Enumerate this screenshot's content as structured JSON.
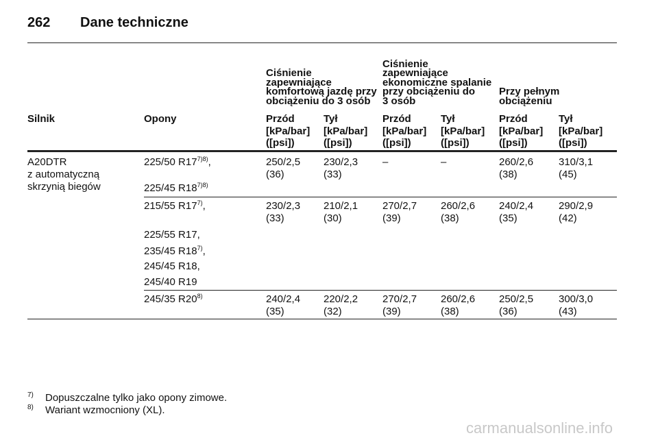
{
  "header": {
    "page_number": "262",
    "title": "Dane techniczne"
  },
  "table": {
    "groups": [
      {
        "lines": [
          "Ciśnienie",
          "zapewniające",
          "komfortową jazdę przy",
          "obciążeniu do 3 osób"
        ]
      },
      {
        "lines": [
          "Ciśnienie",
          "zapewniające",
          "ekonomiczne spalanie",
          "przy obciążeniu do",
          "3 osób"
        ]
      },
      {
        "lines": [
          "Przy pełnym",
          "obciążeniu"
        ]
      }
    ],
    "columns": [
      "Silnik",
      "Opony",
      "Przód",
      "Tył",
      "Przód",
      "Tył",
      "Przód",
      "Tył"
    ],
    "units": [
      [
        "[kPa/bar]",
        "([psi])"
      ],
      [
        "[kPa/bar]",
        "([psi])"
      ],
      [
        "[kPa/bar]",
        "([psi])"
      ],
      [
        "[kPa/bar]",
        "([psi])"
      ],
      [
        "[kPa/bar]",
        "([psi])"
      ],
      [
        "[kPa/bar]",
        "([psi])"
      ]
    ],
    "rows": [
      {
        "engine": [
          "A20DTR",
          "z automatyczną",
          "skrzynią biegów"
        ],
        "tires": [
          {
            "text": "225/50 R17",
            "note": "7)8)",
            "suffix": ","
          },
          {
            "text": "225/45 R18",
            "note": "7)8)"
          }
        ],
        "values": [
          [
            "250/2,5",
            "(36)"
          ],
          [
            "230/2,3",
            "(33)"
          ],
          [
            "–"
          ],
          [
            "–"
          ],
          [
            "260/2,6",
            "(38)"
          ],
          [
            "310/3,1",
            "(45)"
          ]
        ]
      },
      {
        "tires": [
          {
            "text": "215/55 R17",
            "note": "7)",
            "suffix": ","
          },
          {
            "text": "225/55 R17,"
          },
          {
            "text": "235/45 R18",
            "note": "7)",
            "suffix": ","
          },
          {
            "text": "245/45 R18,"
          },
          {
            "text": "245/40 R19"
          }
        ],
        "values": [
          [
            "230/2,3",
            "(33)"
          ],
          [
            "210/2,1",
            "(30)"
          ],
          [
            "270/2,7",
            "(39)"
          ],
          [
            "260/2,6",
            "(38)"
          ],
          [
            "240/2,4",
            "(35)"
          ],
          [
            "290/2,9",
            "(42)"
          ]
        ]
      },
      {
        "tires": [
          {
            "text": "245/35 R20",
            "note": "8)"
          }
        ],
        "values": [
          [
            "240/2,4",
            "(35)"
          ],
          [
            "220/2,2",
            "(32)"
          ],
          [
            "270/2,7",
            "(39)"
          ],
          [
            "260/2,6",
            "(38)"
          ],
          [
            "250/2,5",
            "(36)"
          ],
          [
            "300/3,0",
            "(43)"
          ]
        ]
      }
    ]
  },
  "footnotes": [
    {
      "mark": "7)",
      "text": "Dopuszczalne tylko jako opony zimowe."
    },
    {
      "mark": "8)",
      "text": "Wariant wzmocniony (XL)."
    }
  ],
  "watermark": "carmanualsonline.info"
}
